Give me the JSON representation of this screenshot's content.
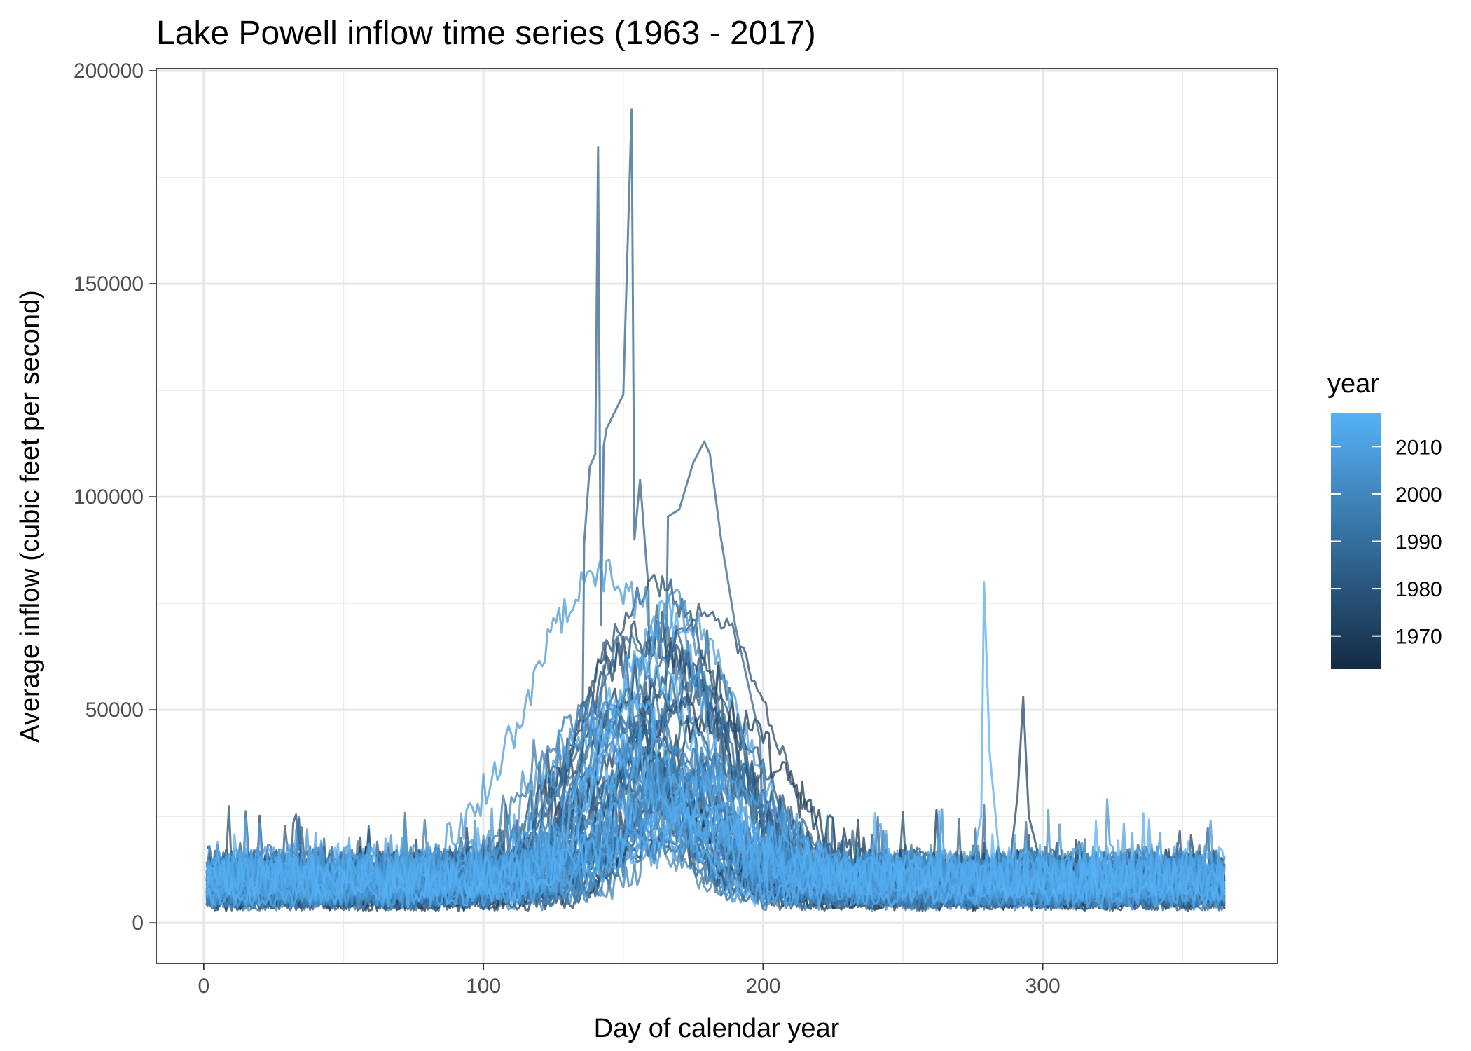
{
  "chart_data": {
    "type": "line",
    "title": "Lake Powell inflow time series (1963 - 2017)",
    "xlabel": "Day of calendar year",
    "ylabel": "Average inflow (cubic feet per second)",
    "xlim": [
      -17,
      384
    ],
    "ylim": [
      -9500,
      200500
    ],
    "x_ticks": [
      0,
      100,
      200,
      300
    ],
    "y_ticks": [
      0,
      50000,
      100000,
      150000,
      200000
    ],
    "x_tick_labels": [
      "0",
      "100",
      "200",
      "300"
    ],
    "y_tick_labels": [
      "0",
      "50000",
      "100000",
      "150000",
      "200000"
    ],
    "grid": true,
    "legend": {
      "title": "year",
      "placement": "right",
      "type": "colorbar",
      "range": [
        1963,
        2017
      ],
      "ticks": [
        1970,
        1980,
        1990,
        2000,
        2010
      ],
      "tick_labels": [
        "1970",
        "1980",
        "1990",
        "2000",
        "2010"
      ],
      "low_color": "#132b43",
      "high_color": "#56b1f7"
    },
    "series_note_years": [
      1963,
      2017
    ],
    "highlights": [
      {
        "year": 1983,
        "x": [
          135,
          138,
          140,
          141,
          142,
          143,
          144,
          150,
          153,
          154,
          156,
          160
        ],
        "y": [
          80000,
          107000,
          110000,
          182000,
          70000,
          112000,
          116000,
          124000,
          191000,
          90000,
          104000,
          70000
        ]
      },
      {
        "year": 1984,
        "x": [
          165,
          170,
          175,
          179,
          181,
          185,
          190,
          200
        ],
        "y": [
          95000,
          97000,
          108000,
          113000,
          110000,
          90000,
          70000,
          40000
        ]
      },
      {
        "year": 2014,
        "x": [
          275,
          278,
          279,
          281,
          285
        ],
        "y": [
          15000,
          25000,
          80000,
          40000,
          12000
        ]
      },
      {
        "year": 1972,
        "x": [
          288,
          291,
          293,
          295,
          300
        ],
        "y": [
          12000,
          30000,
          53000,
          25000,
          12000
        ]
      }
    ]
  }
}
